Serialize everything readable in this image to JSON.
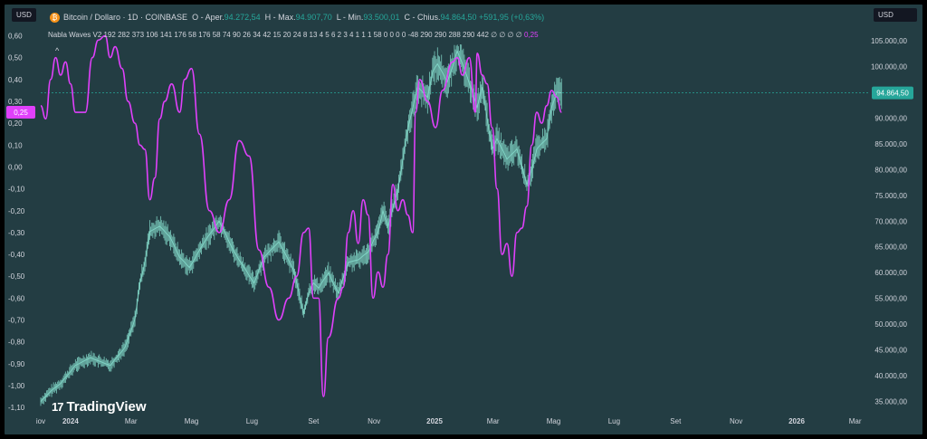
{
  "header": {
    "symbol_title": "Bitcoin / Dollaro · 1D · COINBASE",
    "open_label": "O - Aper.",
    "open_value": "94.272,54",
    "high_label": "H - Max.",
    "high_value": "94.907,70",
    "low_label": "L - Min.",
    "low_value": "93.500,01",
    "close_label": "C - Chius.",
    "close_value": "94.864,50",
    "change_value": "+591,95 (+0,63%)"
  },
  "currency_left": "USD",
  "currency_right": "USD",
  "indicator": {
    "name": "Nabla Waves V2",
    "params": [
      "192",
      "282",
      "373",
      "106",
      "141",
      "176",
      "58",
      "176",
      "58",
      "74",
      "90",
      "26",
      "34",
      "42",
      "15",
      "20",
      "24",
      "8",
      "13",
      "4",
      "5",
      "6",
      "2",
      "3",
      "4",
      "1",
      "1",
      "1",
      "58",
      "0",
      "0",
      "0",
      "0",
      "-48",
      "290",
      "290",
      "288",
      "290",
      "442"
    ],
    "empties": "∅ ∅ ∅ ∅",
    "last_value": "0,25"
  },
  "logo_text": "TradingView",
  "colors": {
    "background": "#233d43",
    "price": "#7fd3c4",
    "indicator": "#e040fb",
    "price_line": "#26a69a",
    "label_bg": "#26a69a",
    "ind_label_bg": "#e040fb"
  },
  "chart_data": {
    "type": "line",
    "x_ticks": [
      {
        "label": "iov",
        "i": 0
      },
      {
        "label": "2024",
        "i": 30
      },
      {
        "label": "Mar",
        "i": 91
      },
      {
        "label": "Mag",
        "i": 152
      },
      {
        "label": "Lug",
        "i": 213
      },
      {
        "label": "Set",
        "i": 275
      },
      {
        "label": "Nov",
        "i": 336
      },
      {
        "label": "2025",
        "i": 397
      },
      {
        "label": "Mar",
        "i": 456
      },
      {
        "label": "Mag",
        "i": 517
      },
      {
        "label": "Lug",
        "i": 578
      },
      {
        "label": "Set",
        "i": 640
      },
      {
        "label": "Nov",
        "i": 701
      },
      {
        "label": "2026",
        "i": 762
      },
      {
        "label": "Mar",
        "i": 821
      }
    ],
    "x_range": [
      0,
      835
    ],
    "price_axis": {
      "ylim": [
        33000,
        108500
      ],
      "ticks": [
        "35.000,00",
        "40.000,00",
        "45.000,00",
        "50.000,00",
        "55.000,00",
        "60.000,00",
        "65.000,00",
        "70.000,00",
        "75.000,00",
        "80.000,00",
        "85.000,00",
        "90.000,00",
        "95.000,00",
        "100.000,00",
        "105.000,00"
      ],
      "tick_values": [
        35000,
        40000,
        45000,
        50000,
        55000,
        60000,
        65000,
        70000,
        75000,
        80000,
        85000,
        90000,
        95000,
        100000,
        105000
      ],
      "last_label": "94.864,50",
      "last_value": 94864.5
    },
    "indicator_axis": {
      "ylim": [
        -1.12,
        0.66
      ],
      "ticks": [
        "0,60",
        "0,50",
        "0,40",
        "0,30",
        "0,20",
        "0,10",
        "0,00",
        "-0,10",
        "-0,20",
        "-0,30",
        "-0,40",
        "-0,50",
        "-0,60",
        "-0,70",
        "-0,80",
        "-0,90",
        "-1,00",
        "-1,10"
      ],
      "tick_values": [
        0.6,
        0.5,
        0.4,
        0.3,
        0.2,
        0.1,
        0.0,
        -0.1,
        -0.2,
        -0.3,
        -0.4,
        -0.5,
        -0.6,
        -0.7,
        -0.8,
        -0.9,
        -1.0,
        -1.1
      ],
      "last_label": "0,25",
      "last_value": 0.25
    },
    "series": [
      {
        "role": "price",
        "x": [
          0,
          10,
          20,
          35,
          50,
          70,
          85,
          95,
          100,
          105,
          110,
          120,
          130,
          140,
          150,
          165,
          180,
          195,
          205,
          215,
          225,
          240,
          255,
          265,
          270,
          275,
          280,
          290,
          300,
          310,
          320,
          330,
          340,
          345,
          350,
          360,
          370,
          380,
          390,
          395,
          400,
          410,
          420,
          430,
          440,
          445,
          450,
          455,
          460,
          470,
          480,
          490,
          495,
          500,
          510,
          515,
          520,
          525
        ],
        "y": [
          35000,
          37000,
          38500,
          42000,
          43500,
          42000,
          45500,
          51000,
          58000,
          62000,
          68000,
          69000,
          67000,
          63000,
          61000,
          66000,
          70000,
          64000,
          61000,
          58000,
          63000,
          66000,
          60500,
          52000,
          56000,
          58000,
          57000,
          60000,
          56000,
          62000,
          62500,
          64000,
          68000,
          72000,
          69000,
          76000,
          88000,
          96000,
          94000,
          99000,
          100500,
          97000,
          103000,
          98000,
          92000,
          96000,
          90000,
          84000,
          86000,
          82000,
          84000,
          77000,
          80000,
          84000,
          86000,
          92000,
          95000,
          94864.5
        ]
      },
      {
        "role": "indicator",
        "x": [
          0,
          5,
          10,
          15,
          20,
          25,
          30,
          35,
          45,
          52,
          58,
          65,
          70,
          75,
          82,
          88,
          95,
          100,
          105,
          110,
          115,
          120,
          125,
          132,
          140,
          145,
          152,
          160,
          170,
          180,
          190,
          200,
          210,
          220,
          230,
          240,
          250,
          258,
          265,
          270,
          275,
          280,
          285,
          290,
          300,
          305,
          310,
          315,
          320,
          325,
          330,
          335,
          340,
          345,
          350,
          355,
          360,
          365,
          370,
          375,
          378,
          382,
          390,
          398,
          405,
          415,
          420,
          425,
          432,
          438,
          440,
          445,
          450,
          455,
          460,
          465,
          470,
          475,
          480,
          485,
          490,
          495,
          500,
          505,
          510,
          515,
          520,
          525
        ],
        "y": [
          0.28,
          0.22,
          0.4,
          0.5,
          0.42,
          0.48,
          0.38,
          0.25,
          0.25,
          0.5,
          0.58,
          0.6,
          0.5,
          0.55,
          0.45,
          0.3,
          0.2,
          0.1,
          0.08,
          -0.15,
          -0.05,
          0.22,
          0.3,
          0.38,
          0.25,
          0.4,
          0.45,
          0.15,
          -0.2,
          -0.3,
          -0.15,
          0.12,
          0.05,
          -0.38,
          -0.55,
          -0.7,
          -0.6,
          -0.5,
          -0.3,
          -0.28,
          -0.6,
          -0.6,
          -1.05,
          -0.78,
          -0.6,
          -0.55,
          -0.3,
          -0.2,
          -0.35,
          -0.15,
          -0.22,
          -0.6,
          -0.48,
          -0.55,
          -0.4,
          -0.08,
          -0.2,
          -0.15,
          -0.22,
          -0.3,
          0.25,
          0.4,
          0.3,
          0.18,
          0.35,
          0.48,
          0.5,
          0.42,
          0.5,
          0.25,
          0.52,
          0.42,
          0.38,
          0.18,
          -0.1,
          -0.4,
          -0.35,
          -0.5,
          -0.3,
          -0.28,
          -0.18,
          0.1,
          0.25,
          0.2,
          0.28,
          0.35,
          0.32,
          0.25
        ]
      }
    ]
  }
}
